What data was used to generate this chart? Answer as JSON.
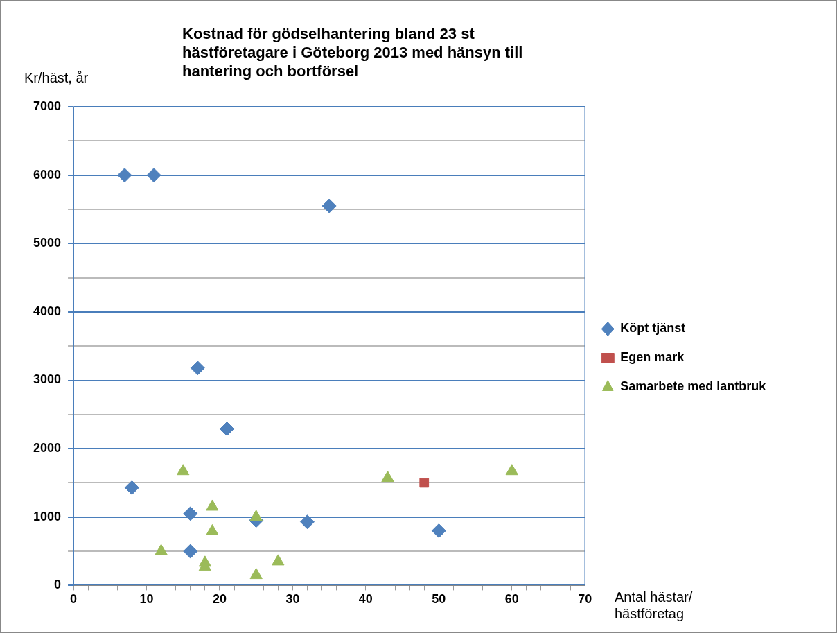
{
  "chart_data": {
    "type": "scatter",
    "title": "Kostnad för gödselhantering bland 23 st hästföretagare i Göteborg 2013 med hänsyn till hantering och bortförsel",
    "ylabel": "Kr/häst, år",
    "xlabel": "Antal hästar/ hästföretag",
    "series": [
      {
        "name": "Köpt tjänst",
        "color": "#4f81bd",
        "marker": "diamond",
        "x": [
          7,
          11,
          35,
          17,
          21,
          8,
          16,
          16,
          25,
          32,
          50
        ],
        "values": [
          6000,
          6000,
          5550,
          3180,
          2290,
          1430,
          1050,
          500,
          950,
          930,
          800
        ]
      },
      {
        "name": "Egen mark",
        "color": "#c0504d",
        "marker": "square",
        "x": [
          48
        ],
        "values": [
          1500
        ]
      },
      {
        "name": "Samarbete med lantbruk",
        "color": "#9bbb59",
        "marker": "triangle",
        "x": [
          15,
          19,
          19,
          25,
          12,
          18,
          18,
          25,
          28,
          43,
          60
        ],
        "values": [
          1670,
          1150,
          790,
          1000,
          500,
          330,
          270,
          150,
          350,
          1570,
          1670
        ]
      }
    ],
    "xlim": [
      0,
      70
    ],
    "xticks": [
      0,
      {
        "value": 2,
        "label": null
      },
      {
        "value": 4,
        "label": null
      },
      {
        "value": 6,
        "label": null
      },
      {
        "value": 8,
        "label": null
      },
      10,
      {
        "value": 12,
        "label": null
      },
      {
        "value": 14,
        "label": null
      },
      {
        "value": 16,
        "label": null
      },
      {
        "value": 18,
        "label": null
      },
      20,
      {
        "value": 22,
        "label": null
      },
      {
        "value": 24,
        "label": null
      },
      {
        "value": 26,
        "label": null
      },
      {
        "value": 28,
        "label": null
      },
      30,
      {
        "value": 32,
        "label": null
      },
      {
        "value": 34,
        "label": null
      },
      {
        "value": 36,
        "label": null
      },
      {
        "value": 38,
        "label": null
      },
      40,
      {
        "value": 42,
        "label": null
      },
      {
        "value": 44,
        "label": null
      },
      {
        "value": 46,
        "label": null
      },
      {
        "value": 48,
        "label": null
      },
      50,
      {
        "value": 52,
        "label": null
      },
      {
        "value": 54,
        "label": null
      },
      {
        "value": 56,
        "label": null
      },
      {
        "value": 58,
        "label": null
      },
      60,
      {
        "value": 62,
        "label": null
      },
      {
        "value": 64,
        "label": null
      },
      {
        "value": 66,
        "label": null
      },
      {
        "value": 68,
        "label": null
      },
      70
    ],
    "ylim": [
      0,
      7000
    ],
    "yticks": [
      0,
      {
        "value": 500,
        "label": null
      },
      1000,
      {
        "value": 1500,
        "label": null
      },
      2000,
      {
        "value": 2500,
        "label": null
      },
      3000,
      {
        "value": 3500,
        "label": null
      },
      4000,
      {
        "value": 4500,
        "label": null
      },
      5000,
      {
        "value": 5500,
        "label": null
      },
      6000,
      {
        "value": 6500,
        "label": null
      },
      7000
    ],
    "grid": "y",
    "legend": "right"
  }
}
